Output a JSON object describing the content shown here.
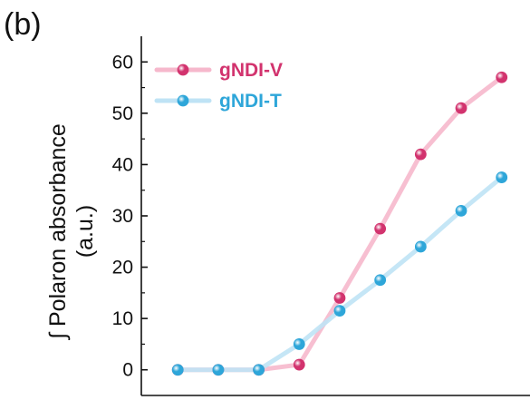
{
  "panel_label": "(b)",
  "colors": {
    "gNDI-V_line": "#f6b8cc",
    "gNDI-V_marker": "#d2336e",
    "gNDI-T_line": "#bfe3f5",
    "gNDI-T_marker": "#2ea6d9",
    "axis": "#111111"
  },
  "chart_data": {
    "type": "line",
    "title": "",
    "xlabel": "",
    "ylabel_lines": [
      "∫ Polaron absorbance",
      "(a.u.)"
    ],
    "x": [
      1,
      2,
      3,
      4,
      5,
      6,
      7,
      8,
      9
    ],
    "xlim": [
      0.1,
      9.7
    ],
    "ylim": [
      -5,
      65
    ],
    "yticks": [
      0,
      10,
      20,
      30,
      40,
      50,
      60
    ],
    "grid": false,
    "legend_position": "top-left",
    "series": [
      {
        "name": "gNDI-V",
        "values": [
          0,
          0,
          0,
          1,
          14,
          27.5,
          42,
          51,
          57
        ]
      },
      {
        "name": "gNDI-T",
        "values": [
          0,
          0,
          0,
          5,
          11.5,
          17.5,
          24,
          31,
          37.5
        ]
      }
    ]
  }
}
